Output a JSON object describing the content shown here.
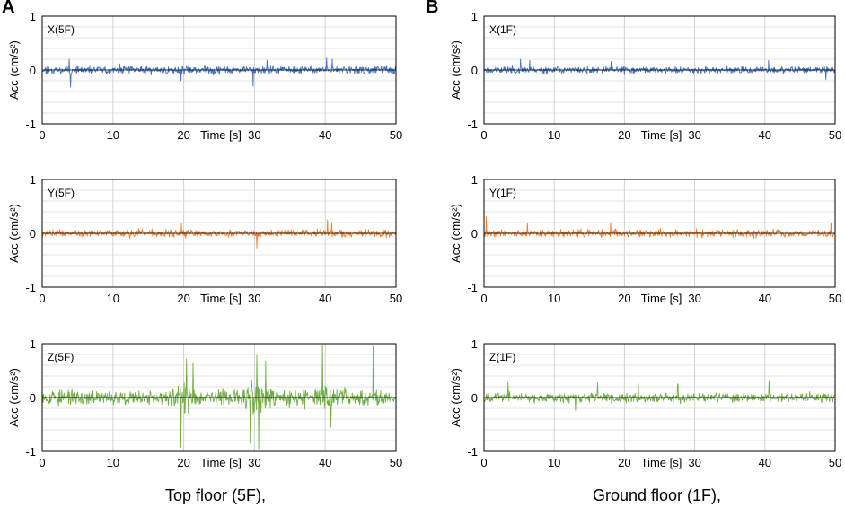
{
  "panels": [
    {
      "letter": "A",
      "caption": "Top floor (5F),"
    },
    {
      "letter": "B",
      "caption": "Ground floor (1F),"
    }
  ],
  "chart_data": [
    {
      "id": "X5F",
      "type": "line",
      "title": "X(5F)",
      "xlabel": "Time [s]",
      "ylabel": "Acc (cm/s²)",
      "xlim": [
        0,
        50
      ],
      "ylim": [
        -1,
        1
      ],
      "xticks": [
        0,
        10,
        20,
        30,
        40,
        50
      ],
      "yticks": [
        -1,
        0,
        1
      ],
      "grid": true,
      "color": "#4472C4",
      "amplitude": 0.085,
      "seed": 11,
      "peaks": [
        {
          "t": 3.8,
          "v": 0.2
        },
        {
          "t": 4.0,
          "v": -0.32
        },
        {
          "t": 19.6,
          "v": -0.2
        },
        {
          "t": 29.8,
          "v": -0.3
        },
        {
          "t": 31.8,
          "v": 0.18
        },
        {
          "t": 40.2,
          "v": 0.22
        },
        {
          "t": 41.0,
          "v": 0.2
        }
      ]
    },
    {
      "id": "X1F",
      "type": "line",
      "title": "X(1F)",
      "xlabel": "Time [s]",
      "ylabel": "Acc (cm/s²)",
      "xlim": [
        0,
        50
      ],
      "ylim": [
        -1,
        1
      ],
      "xticks": [
        0,
        10,
        20,
        30,
        40,
        50
      ],
      "yticks": [
        -1,
        0,
        1
      ],
      "grid": true,
      "color": "#4472C4",
      "amplitude": 0.07,
      "seed": 23,
      "peaks": [
        {
          "t": 5.2,
          "v": 0.2
        },
        {
          "t": 6.5,
          "v": 0.18
        },
        {
          "t": 18.1,
          "v": 0.16
        },
        {
          "t": 40.5,
          "v": 0.18
        },
        {
          "t": 48.7,
          "v": -0.18
        }
      ]
    },
    {
      "id": "Y5F",
      "type": "line",
      "title": "Y(5F)",
      "xlabel": "Time [s]",
      "ylabel": "Acc (cm/s²)",
      "xlim": [
        0,
        50
      ],
      "ylim": [
        -1,
        1
      ],
      "xticks": [
        0,
        10,
        20,
        30,
        40,
        50
      ],
      "yticks": [
        -1,
        0,
        1
      ],
      "grid": true,
      "color": "#ED7D31",
      "amplitude": 0.075,
      "seed": 37,
      "peaks": [
        {
          "t": 19.7,
          "v": 0.18
        },
        {
          "t": 30.3,
          "v": -0.27
        },
        {
          "t": 40.3,
          "v": 0.25
        },
        {
          "t": 40.9,
          "v": 0.2
        }
      ]
    },
    {
      "id": "Y1F",
      "type": "line",
      "title": "Y(1F)",
      "xlabel": "Time [s]",
      "ylabel": "Acc (cm/s²)",
      "xlim": [
        0,
        50
      ],
      "ylim": [
        -1,
        1
      ],
      "xticks": [
        0,
        10,
        20,
        30,
        40,
        50
      ],
      "yticks": [
        -1,
        0,
        1
      ],
      "grid": true,
      "color": "#ED7D31",
      "amplitude": 0.075,
      "seed": 41,
      "peaks": [
        {
          "t": 0.3,
          "v": 0.3
        },
        {
          "t": 6.2,
          "v": 0.18
        },
        {
          "t": 18.0,
          "v": 0.2
        },
        {
          "t": 49.4,
          "v": 0.2
        }
      ]
    },
    {
      "id": "Z5F",
      "type": "line",
      "title": "Z(5F)",
      "xlabel": "Time [s]",
      "ylabel": "Acc (cm/s²)",
      "xlim": [
        0,
        50
      ],
      "ylim": [
        -1,
        1
      ],
      "xticks": [
        0,
        10,
        20,
        30,
        40,
        50
      ],
      "yticks": [
        -1,
        0,
        1
      ],
      "grid": true,
      "color": "#70AD47",
      "amplitude": 0.2,
      "seed": 53,
      "peaks": [
        {
          "t": 19.6,
          "v": -0.92
        },
        {
          "t": 20.4,
          "v": 0.72
        },
        {
          "t": 21.3,
          "v": 0.65
        },
        {
          "t": 29.4,
          "v": -0.85
        },
        {
          "t": 30.6,
          "v": -0.95
        },
        {
          "t": 30.3,
          "v": 0.78
        },
        {
          "t": 31.6,
          "v": 0.68
        },
        {
          "t": 39.6,
          "v": 0.98
        },
        {
          "t": 46.8,
          "v": 0.95
        },
        {
          "t": 40.8,
          "v": -0.55
        }
      ]
    },
    {
      "id": "Z1F",
      "type": "line",
      "title": "Z(1F)",
      "xlabel": "Time [s]",
      "ylabel": "Acc (cm/s²)",
      "xlim": [
        0,
        50
      ],
      "ylim": [
        -1,
        1
      ],
      "xticks": [
        0,
        10,
        20,
        30,
        40,
        50
      ],
      "yticks": [
        -1,
        0,
        1
      ],
      "grid": true,
      "color": "#70AD47",
      "amplitude": 0.09,
      "seed": 67,
      "peaks": [
        {
          "t": 3.4,
          "v": 0.28
        },
        {
          "t": 16.2,
          "v": 0.27
        },
        {
          "t": 22.0,
          "v": 0.26
        },
        {
          "t": 27.6,
          "v": 0.25
        },
        {
          "t": 40.6,
          "v": 0.3
        },
        {
          "t": 13.0,
          "v": -0.24
        }
      ]
    }
  ]
}
